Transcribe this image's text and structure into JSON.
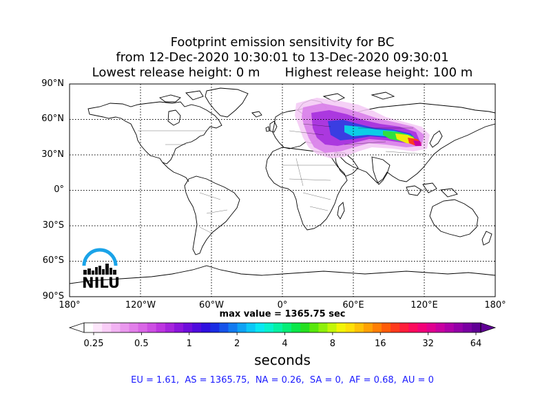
{
  "title": {
    "line1": "Footprint emission sensitivity for BC",
    "line2": "from 12-Dec-2020 10:30:01 to 13-Dec-2020 09:30:01",
    "lowest": "Lowest release height: 0 m",
    "highest": "Highest release height: 100 m"
  },
  "map": {
    "lat_labels": [
      "90°N",
      "60°N",
      "30°N",
      "0°",
      "30°S",
      "60°S",
      "90°S"
    ],
    "lon_labels": [
      "180°",
      "120°W",
      "60°W",
      "0°",
      "60°E",
      "120°E",
      "180°"
    ],
    "grid": "dotted",
    "projection": "cylindrical",
    "plume_region": "Eastern Europe, Russia, Central Asia to northern China",
    "peak_location": "northern China"
  },
  "max_value": "max value = 1365.75 sec",
  "colorbar": {
    "tick_labels": [
      "0.25",
      "0.5",
      "1",
      "2",
      "4",
      "8",
      "16",
      "32",
      "64"
    ],
    "units": "seconds",
    "colors": [
      "#ffffff",
      "#fde6fb",
      "#f9cdf7",
      "#f2b3f3",
      "#ea98ee",
      "#e27fea",
      "#d966e6",
      "#cd4ee3",
      "#bd35e0",
      "#a624dd",
      "#8c15dc",
      "#6e0ddc",
      "#4f0bde",
      "#2f10e0",
      "#1a2ce4",
      "#1653ea",
      "#127bf0",
      "#0ea2f4",
      "#0bc8f7",
      "#08e8f3",
      "#06f2cf",
      "#05f2a4",
      "#05ee78",
      "#0ae84a",
      "#25e020",
      "#58e80c",
      "#8ef00a",
      "#c3f608",
      "#f3f406",
      "#ffe006",
      "#ffc206",
      "#ffa105",
      "#ff7f05",
      "#ff5c08",
      "#ff3a1c",
      "#ff1d3a",
      "#fc0a5c",
      "#f20078",
      "#e0008f",
      "#c800a0",
      "#ae00a8",
      "#9400a8",
      "#7a00a2",
      "#600095"
    ]
  },
  "regions": "EU = 1.61,  AS = 1365.75,  NA = 0.26,  SA = 0,  AF = 0.68,  AU = 0",
  "logo": "NILU"
}
